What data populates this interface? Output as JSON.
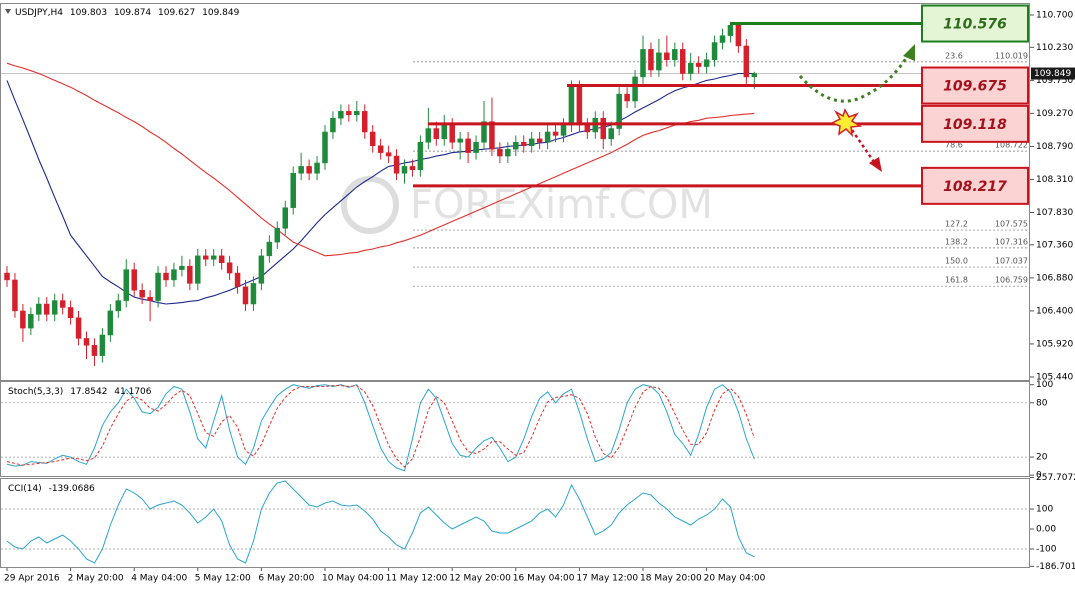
{
  "chart_data": [
    {
      "type": "candlestick",
      "symbol": "USDJPY,H4",
      "categories": [
        "29 Apr 2016",
        null,
        null,
        null,
        null,
        null,
        null,
        null,
        "2 May 20:00",
        null,
        null,
        null,
        null,
        null,
        null,
        null,
        "4 May 04:00",
        null,
        null,
        null,
        null,
        null,
        null,
        null,
        "5 May 12:00",
        null,
        null,
        null,
        null,
        null,
        null,
        null,
        "6 May 20:00",
        null,
        null,
        null,
        null,
        null,
        null,
        null,
        "10 May 04:00",
        null,
        null,
        null,
        null,
        null,
        null,
        null,
        "11 May 12:00",
        null,
        null,
        null,
        null,
        null,
        null,
        null,
        "12 May 20:00",
        null,
        null,
        null,
        null,
        null,
        null,
        null,
        "16 May 04:00",
        null,
        null,
        null,
        null,
        null,
        null,
        null,
        "17 May 12:00",
        null,
        null,
        null,
        null,
        null,
        null,
        null,
        "18 May 20:00",
        null,
        null,
        null,
        null,
        null,
        null,
        null,
        "20 May 04:00",
        null,
        null,
        null,
        null,
        null,
        null
      ],
      "open": [
        106.95,
        106.85,
        106.4,
        106.15,
        106.35,
        106.5,
        106.35,
        106.55,
        106.45,
        106.3,
        106.0,
        105.9,
        105.75,
        106.05,
        106.4,
        106.55,
        107.0,
        106.7,
        106.6,
        106.55,
        106.95,
        106.85,
        107.0,
        107.05,
        106.8,
        107.2,
        107.15,
        107.2,
        107.1,
        106.95,
        106.75,
        106.5,
        106.8,
        107.2,
        107.4,
        107.6,
        107.9,
        108.4,
        108.5,
        108.4,
        108.55,
        109.0,
        109.2,
        109.3,
        109.25,
        109.3,
        109.0,
        108.8,
        108.7,
        108.65,
        108.4,
        108.5,
        108.45,
        108.85,
        109.05,
        108.9,
        109.1,
        108.85,
        108.9,
        108.7,
        108.85,
        109.15,
        108.75,
        108.65,
        108.75,
        108.85,
        108.8,
        108.9,
        108.85,
        109.0,
        108.95,
        109.1,
        109.65,
        109.1,
        109.0,
        109.2,
        108.9,
        109.05,
        109.55,
        109.45,
        109.8,
        110.2,
        109.9,
        110.15,
        110.05,
        110.2,
        109.85,
        110.0,
        109.95,
        110.05,
        110.3,
        110.4,
        110.55,
        110.25,
        109.803
      ],
      "high": [
        107.05,
        106.95,
        106.5,
        106.45,
        106.6,
        106.6,
        106.65,
        106.65,
        106.55,
        106.4,
        106.1,
        106.0,
        106.15,
        106.5,
        106.65,
        107.15,
        107.1,
        106.8,
        106.7,
        107.05,
        107.05,
        107.1,
        107.2,
        107.15,
        107.3,
        107.3,
        107.3,
        107.3,
        107.2,
        107.05,
        106.85,
        106.9,
        107.3,
        107.5,
        107.7,
        108.0,
        108.5,
        108.7,
        108.6,
        108.65,
        109.1,
        109.3,
        109.4,
        109.4,
        109.45,
        109.4,
        109.1,
        108.9,
        108.8,
        108.75,
        108.6,
        108.6,
        108.95,
        109.35,
        109.15,
        109.25,
        109.2,
        109.0,
        109.0,
        108.95,
        109.45,
        109.5,
        108.85,
        108.85,
        108.95,
        108.95,
        109.0,
        109.0,
        109.1,
        109.1,
        109.2,
        109.75,
        109.75,
        109.2,
        109.3,
        109.3,
        109.15,
        109.65,
        109.65,
        109.9,
        110.4,
        110.3,
        110.35,
        110.4,
        110.3,
        110.3,
        110.15,
        110.1,
        110.15,
        110.4,
        110.5,
        110.6,
        110.6,
        110.35,
        109.874
      ],
      "low": [
        106.75,
        106.3,
        105.95,
        106.05,
        106.25,
        106.25,
        106.25,
        106.35,
        106.2,
        105.9,
        105.7,
        105.6,
        105.65,
        105.95,
        106.3,
        106.45,
        106.6,
        106.5,
        106.25,
        106.45,
        106.75,
        106.75,
        106.9,
        106.7,
        106.7,
        107.05,
        107.05,
        107.0,
        106.85,
        106.65,
        106.4,
        106.4,
        106.7,
        107.1,
        107.3,
        107.5,
        107.8,
        108.3,
        108.3,
        108.3,
        108.45,
        108.9,
        109.1,
        109.15,
        109.15,
        108.9,
        108.7,
        108.6,
        108.55,
        108.3,
        108.25,
        108.35,
        108.35,
        108.75,
        108.8,
        108.8,
        108.75,
        108.6,
        108.55,
        108.6,
        108.75,
        108.65,
        108.55,
        108.55,
        108.65,
        108.7,
        108.7,
        108.75,
        108.75,
        108.85,
        108.85,
        109.0,
        109.0,
        108.9,
        108.9,
        108.75,
        108.8,
        108.95,
        109.35,
        109.35,
        109.7,
        109.8,
        109.8,
        109.95,
        109.95,
        109.75,
        109.75,
        109.85,
        109.85,
        109.95,
        110.2,
        110.3,
        110.15,
        109.7,
        109.627
      ],
      "close": [
        106.85,
        106.4,
        106.15,
        106.35,
        106.5,
        106.35,
        106.55,
        106.45,
        106.3,
        106.0,
        105.9,
        105.75,
        106.05,
        106.4,
        106.55,
        107.0,
        106.7,
        106.6,
        106.55,
        106.95,
        106.85,
        107.0,
        107.05,
        106.8,
        107.2,
        107.15,
        107.2,
        107.1,
        106.95,
        106.75,
        106.5,
        106.8,
        107.2,
        107.4,
        107.6,
        107.9,
        108.4,
        108.5,
        108.4,
        108.55,
        109.0,
        109.2,
        109.3,
        109.25,
        109.3,
        109.0,
        108.8,
        108.7,
        108.65,
        108.4,
        108.5,
        108.45,
        108.85,
        109.05,
        108.9,
        109.1,
        108.85,
        108.9,
        108.7,
        108.85,
        109.15,
        108.75,
        108.65,
        108.75,
        108.85,
        108.8,
        108.9,
        108.85,
        109.0,
        108.95,
        109.1,
        109.65,
        109.1,
        109.0,
        109.2,
        108.9,
        109.05,
        109.55,
        109.45,
        109.8,
        110.2,
        109.9,
        110.15,
        110.05,
        110.2,
        109.85,
        110.0,
        109.95,
        110.05,
        110.3,
        110.4,
        110.55,
        110.25,
        109.8,
        109.849
      ],
      "up_color": "#1f8a3c",
      "down_color": "#d4202c",
      "lines": [
        {
          "color": "#1c2a8c",
          "values": [
            109.75,
            109.46,
            109.18,
            108.89,
            108.6,
            108.33,
            108.05,
            107.78,
            107.5,
            107.35,
            107.2,
            107.05,
            106.9,
            106.82,
            106.75,
            106.67,
            106.6,
            106.57,
            106.55,
            106.52,
            106.5,
            106.51,
            106.52,
            106.54,
            106.55,
            106.59,
            106.62,
            106.66,
            106.7,
            106.75,
            106.8,
            106.85,
            106.9,
            107.0,
            107.1,
            107.2,
            107.3,
            107.42,
            107.55,
            107.68,
            107.8,
            107.9,
            108.0,
            108.1,
            108.2,
            108.28,
            108.35,
            108.43,
            108.5,
            108.52,
            108.55,
            108.57,
            108.6,
            108.62,
            108.65,
            108.67,
            108.7,
            108.71,
            108.72,
            108.74,
            108.75,
            108.76,
            108.77,
            108.79,
            108.8,
            108.81,
            108.82,
            108.84,
            108.85,
            108.89,
            108.92,
            108.96,
            109.0,
            109.02,
            109.05,
            109.07,
            109.1,
            109.16,
            109.22,
            109.29,
            109.35,
            109.41,
            109.47,
            109.54,
            109.6,
            109.64,
            109.67,
            109.71,
            109.75,
            109.77,
            109.8,
            109.82,
            109.85,
            109.85,
            109.85
          ]
        },
        {
          "color": "#e0312d",
          "values": [
            110.0,
            109.96,
            109.93,
            109.89,
            109.85,
            109.8,
            109.75,
            109.7,
            109.65,
            109.59,
            109.53,
            109.46,
            109.4,
            109.34,
            109.28,
            109.21,
            109.15,
            109.08,
            109.0,
            108.93,
            108.85,
            108.76,
            108.68,
            108.59,
            108.5,
            108.41,
            108.33,
            108.24,
            108.15,
            108.05,
            107.95,
            107.85,
            107.75,
            107.66,
            107.58,
            107.49,
            107.4,
            107.35,
            107.3,
            107.25,
            107.2,
            107.21,
            107.22,
            107.24,
            107.25,
            107.28,
            107.3,
            107.33,
            107.35,
            107.39,
            107.42,
            107.46,
            107.5,
            107.55,
            107.6,
            107.65,
            107.7,
            107.75,
            107.8,
            107.85,
            107.9,
            107.95,
            108.0,
            108.05,
            108.1,
            108.15,
            108.2,
            108.25,
            108.3,
            108.35,
            108.4,
            108.45,
            108.5,
            108.55,
            108.6,
            108.65,
            108.7,
            108.76,
            108.82,
            108.89,
            108.95,
            108.99,
            109.02,
            109.06,
            109.1,
            109.12,
            109.15,
            109.17,
            109.2,
            109.21,
            109.22,
            109.24,
            109.25,
            109.26,
            109.27
          ]
        }
      ],
      "ylim": [
        105.396,
        110.845
      ],
      "yticks": [
        {
          "value": 110.7,
          "label": "110.700"
        },
        {
          "value": 110.23,
          "label": "110.230"
        },
        {
          "value": 109.75,
          "label": "109.750"
        },
        {
          "value": 109.27,
          "label": "109.270"
        },
        {
          "value": 108.79,
          "label": "108.790"
        },
        {
          "value": 108.31,
          "label": "108.310"
        },
        {
          "value": 107.83,
          "label": "107.830"
        },
        {
          "value": 107.36,
          "label": "107.360"
        },
        {
          "value": 106.88,
          "label": "106.880"
        },
        {
          "value": 106.4,
          "label": "106.400"
        },
        {
          "value": 105.92,
          "label": "105.920"
        },
        {
          "value": 105.44,
          "label": "105.440"
        }
      ],
      "levels": [
        {
          "value": 110.576,
          "color": "#1e7d1e"
        },
        {
          "value": 109.675,
          "color": "#c8141e"
        },
        {
          "value": 109.118,
          "color": "#c8141e"
        },
        {
          "value": 108.217,
          "color": "#c8141e"
        }
      ],
      "fib_levels": [
        {
          "ratio": "23.6",
          "price": 110.019
        },
        {
          "ratio": "78.6",
          "price": 108.722
        },
        {
          "ratio": "127.2",
          "price": 107.575
        },
        {
          "ratio": "138.2",
          "price": 107.316
        },
        {
          "ratio": "150.0",
          "price": 107.037
        },
        {
          "ratio": "161.8",
          "price": 106.759
        }
      ],
      "watermark": "FOREXimf.COM"
    },
    {
      "type": "line",
      "title": "Stoch(5,3,3)",
      "series": [
        {
          "color": "#2ba6cb",
          "values": [
            12,
            10,
            11,
            15,
            14,
            13,
            18,
            22,
            20,
            15,
            12,
            30,
            55,
            70,
            80,
            95,
            85,
            70,
            68,
            75,
            90,
            98,
            95,
            70,
            40,
            30,
            60,
            88,
            50,
            20,
            12,
            30,
            60,
            75,
            88,
            95,
            100,
            98,
            96,
            99,
            100,
            98,
            100,
            97,
            100,
            80,
            55,
            30,
            15,
            8,
            5,
            40,
            80,
            95,
            85,
            60,
            35,
            22,
            20,
            30,
            38,
            42,
            30,
            15,
            20,
            40,
            65,
            85,
            92,
            80,
            90,
            95,
            70,
            40,
            15,
            18,
            25,
            50,
            80,
            95,
            100,
            98,
            90,
            70,
            45,
            35,
            22,
            45,
            75,
            95,
            100,
            92,
            70,
            40,
            17.8542
          ]
        },
        {
          "color": "#e0312d",
          "dash": true,
          "values": [
            15,
            13,
            11,
            12,
            13,
            14,
            15,
            17,
            19,
            18,
            16,
            19,
            32,
            52,
            68,
            82,
            87,
            83,
            74,
            71,
            78,
            88,
            94,
            88,
            68,
            47,
            43,
            59,
            66,
            53,
            27,
            21,
            34,
            55,
            74,
            86,
            94,
            98,
            98,
            98,
            98,
            99,
            99,
            98,
            99,
            92,
            77,
            55,
            33,
            18,
            9,
            18,
            42,
            72,
            87,
            80,
            60,
            39,
            26,
            24,
            29,
            37,
            37,
            29,
            22,
            25,
            42,
            63,
            81,
            86,
            87,
            89,
            85,
            68,
            42,
            24,
            19,
            31,
            52,
            75,
            92,
            98,
            96,
            86,
            68,
            50,
            34,
            34,
            47,
            72,
            90,
            96,
            87,
            67,
            41.1706
          ]
        }
      ],
      "ylim": [
        -2,
        103
      ],
      "yticks": [
        0,
        20,
        80,
        100
      ],
      "levels": [
        20,
        80
      ]
    },
    {
      "type": "line",
      "title": "CCI(14)",
      "series": [
        {
          "color": "#2ba6cb",
          "values": [
            -60,
            -90,
            -100,
            -60,
            -40,
            -70,
            -50,
            -30,
            -60,
            -100,
            -150,
            -170,
            -100,
            20,
            120,
            200,
            180,
            150,
            100,
            120,
            130,
            140,
            120,
            80,
            30,
            60,
            100,
            40,
            -80,
            -150,
            -170,
            -60,
            100,
            180,
            230,
            240,
            200,
            160,
            120,
            110,
            130,
            140,
            120,
            115,
            120,
            90,
            50,
            -10,
            -40,
            -80,
            -100,
            -20,
            80,
            110,
            70,
            30,
            0,
            20,
            40,
            60,
            40,
            -10,
            -20,
            -20,
            0,
            20,
            40,
            80,
            100,
            60,
            120,
            220,
            150,
            60,
            -30,
            -10,
            20,
            80,
            120,
            150,
            180,
            170,
            130,
            100,
            60,
            40,
            20,
            50,
            70,
            100,
            150,
            110,
            -40,
            -120,
            -139.0686
          ]
        }
      ],
      "ylim": [
        -190,
        250
      ],
      "yticks": [
        257.7072,
        100,
        {
          "value": 0,
          "label": "0.00"
        },
        -100,
        -186.7018
      ],
      "levels": [
        100,
        -100
      ]
    }
  ]
}
